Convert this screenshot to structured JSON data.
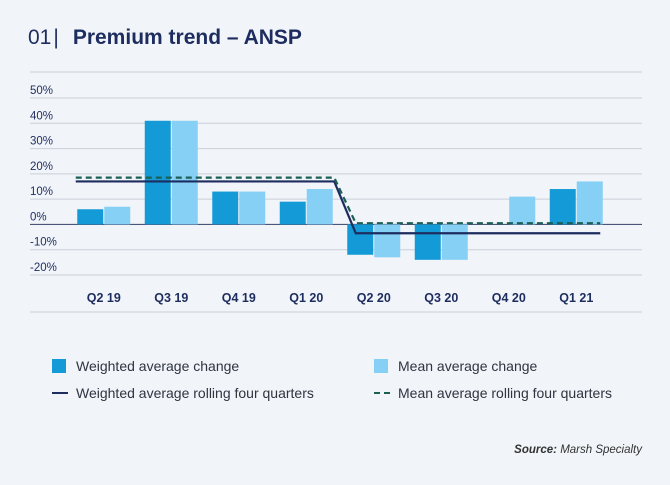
{
  "header": {
    "number": "01",
    "separator": "|",
    "title": "Premium trend – ANSP"
  },
  "colors": {
    "weighted_bar": "#149bd7",
    "mean_bar": "#86cff5",
    "weighted_line": "#1e2d5f",
    "mean_line": "#1c5f55",
    "grid": "#c9d0da",
    "axis_text": "#1e2d5f"
  },
  "chart_data": {
    "type": "bar",
    "title": "Premium trend – ANSP",
    "categories": [
      "Q2 19",
      "Q3 19",
      "Q4 19",
      "Q1 20",
      "Q2 20",
      "Q3 20",
      "Q4 20",
      "Q1 21"
    ],
    "ylim": [
      -20,
      50
    ],
    "yticks": [
      -20,
      -10,
      0,
      10,
      20,
      30,
      40,
      50
    ],
    "ytick_labels": [
      "-20%",
      "-10%",
      "0%",
      "10%",
      "20%",
      "30%",
      "40%",
      "50%"
    ],
    "grid": true,
    "legend_position": "bottom",
    "series": [
      {
        "name": "Weighted average change",
        "kind": "bar",
        "values": [
          6,
          41,
          13,
          9,
          -12,
          -14,
          null,
          14
        ]
      },
      {
        "name": "Mean average change",
        "kind": "bar",
        "values": [
          7,
          41,
          13,
          14,
          -13,
          -14,
          11,
          17
        ]
      },
      {
        "name": "Weighted average rolling four quarters",
        "kind": "line",
        "style": "solid",
        "values": [
          17,
          17,
          17,
          17,
          -3.5,
          -3.5,
          -3.5,
          -3.5
        ]
      },
      {
        "name": "Mean average rolling four quarters",
        "kind": "line",
        "style": "dashed",
        "values": [
          18.5,
          18.5,
          18.5,
          18.5,
          0.5,
          0.5,
          0.5,
          0.5
        ]
      }
    ]
  },
  "source": {
    "label": "Source:",
    "text": "Marsh Specialty"
  }
}
